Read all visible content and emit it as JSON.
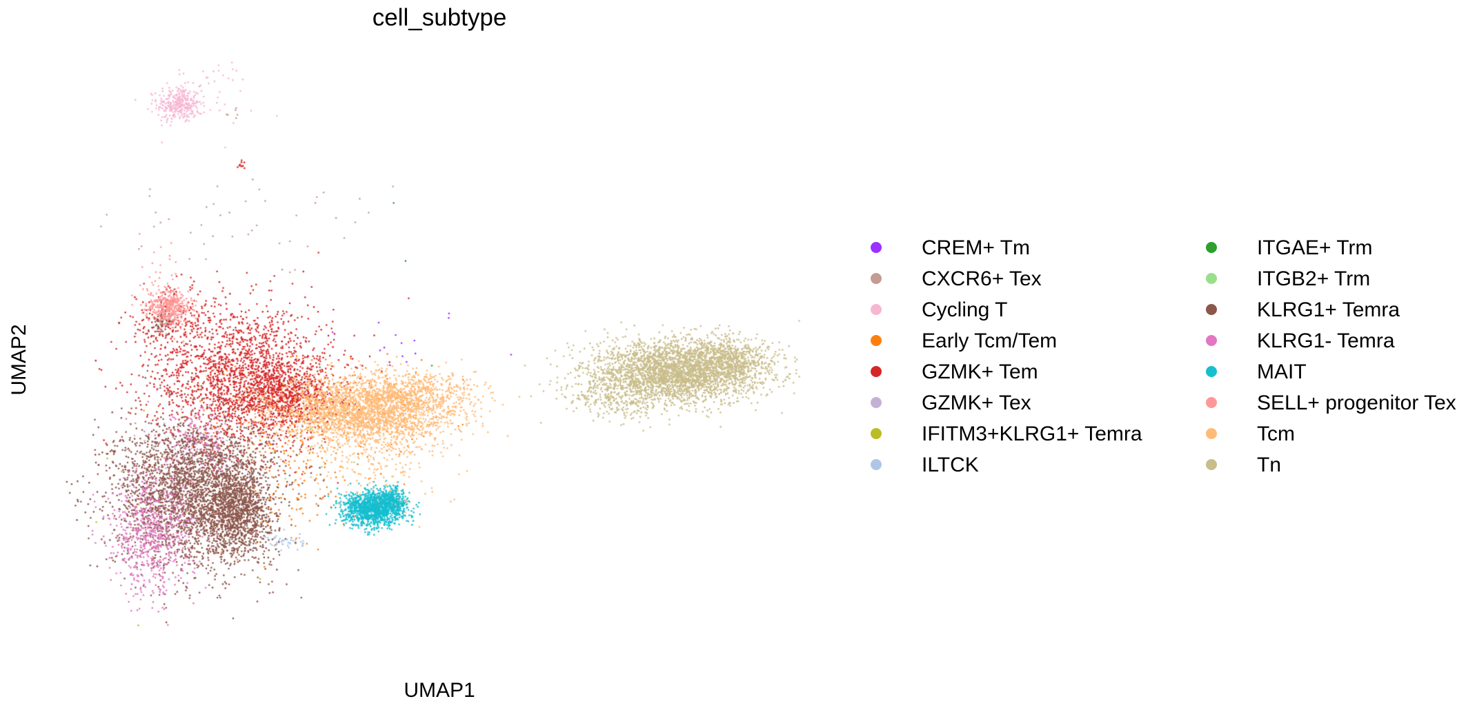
{
  "chart_data": {
    "type": "scatter",
    "title": "cell_subtype",
    "xlabel": "UMAP1",
    "ylabel": "UMAP2",
    "xlim": [
      -11.0,
      13.5
    ],
    "ylim": [
      -6.0,
      13.5
    ],
    "grid": false,
    "axes_visible": false,
    "legend_placement": "right, two columns",
    "series": [
      {
        "name": "CREM+ Tm",
        "color": "#9b30ff",
        "clusters": [
          {
            "cx": -0.3,
            "cy": 4.2,
            "sx": 1.4,
            "sy": 0.6,
            "n": 14
          }
        ]
      },
      {
        "name": "CXCR6+ Tex",
        "color": "#c49c94",
        "clusters": [
          {
            "cx": -4.5,
            "cy": 8.0,
            "sx": 2.8,
            "sy": 0.9,
            "n": 45
          },
          {
            "cx": -5.5,
            "cy": 11.8,
            "sx": 0.3,
            "sy": 0.15,
            "n": 6
          }
        ]
      },
      {
        "name": "Cycling T",
        "color": "#f7b6d2",
        "clusters": [
          {
            "cx": -7.3,
            "cy": 12.0,
            "sx": 0.35,
            "sy": 0.3,
            "n": 300
          },
          {
            "cx": -6.6,
            "cy": 12.3,
            "sx": 0.9,
            "sy": 0.6,
            "n": 50
          }
        ]
      },
      {
        "name": "Early Tcm/Tem",
        "color": "#ff7f0e",
        "clusters": [
          {
            "cx": -2.8,
            "cy": 1.6,
            "sx": 1.6,
            "sy": 1.0,
            "n": 300
          },
          {
            "cx": -3.8,
            "cy": -1.0,
            "sx": 1.0,
            "sy": 0.9,
            "n": 90
          }
        ]
      },
      {
        "name": "GZMK+ Tem",
        "color": "#d62728",
        "clusters": [
          {
            "cx": -5.2,
            "cy": 3.0,
            "sx": 1.5,
            "sy": 1.2,
            "n": 1900
          },
          {
            "cx": -7.5,
            "cy": 4.8,
            "sx": 0.8,
            "sy": 0.6,
            "n": 200
          },
          {
            "cx": -3.8,
            "cy": 2.4,
            "sx": 0.8,
            "sy": 0.5,
            "n": 600
          },
          {
            "cx": -5.2,
            "cy": 10.0,
            "sx": 0.08,
            "sy": 0.1,
            "n": 10
          }
        ]
      },
      {
        "name": "GZMK+ Tex",
        "color": "#c5b0d5",
        "clusters": [
          {
            "cx": -6.8,
            "cy": 0.5,
            "sx": 0.9,
            "sy": 0.6,
            "n": 100
          }
        ]
      },
      {
        "name": "IFITM3+KLRG1+ Temra",
        "color": "#bcbd22",
        "clusters": [
          {
            "cx": -6.5,
            "cy": -1.0,
            "sx": 1.5,
            "sy": 1.5,
            "n": 15
          }
        ]
      },
      {
        "name": "ILTCK",
        "color": "#aec7e8",
        "clusters": [
          {
            "cx": -3.8,
            "cy": -2.4,
            "sx": 0.3,
            "sy": 0.15,
            "n": 45
          }
        ]
      },
      {
        "name": "ITGAE+ Trm",
        "color": "#2ca02c",
        "clusters": [
          {
            "cx": -0.5,
            "cy": 7.0,
            "sx": 1.5,
            "sy": 2.0,
            "n": 4
          }
        ]
      },
      {
        "name": "ITGB2+ Trm",
        "color": "#98df8a",
        "clusters": [
          {
            "cx": -3.5,
            "cy": 0.5,
            "sx": 1.0,
            "sy": 0.8,
            "n": 10
          }
        ]
      },
      {
        "name": "KLRG1+ Temra",
        "color": "#8c564b",
        "clusters": [
          {
            "cx": -6.8,
            "cy": -0.8,
            "sx": 1.3,
            "sy": 1.2,
            "n": 3000
          },
          {
            "cx": -5.3,
            "cy": -1.3,
            "sx": 0.5,
            "sy": 0.8,
            "n": 900
          },
          {
            "cx": -7.8,
            "cy": 4.8,
            "sx": 0.15,
            "sy": 0.15,
            "n": 60
          }
        ]
      },
      {
        "name": "KLRG1- Temra",
        "color": "#e377c2",
        "clusters": [
          {
            "cx": -8.2,
            "cy": -2.2,
            "sx": 0.7,
            "sy": 1.0,
            "n": 650
          },
          {
            "cx": -6.5,
            "cy": 1.0,
            "sx": 0.7,
            "sy": 0.5,
            "n": 120
          }
        ]
      },
      {
        "name": "MAIT",
        "color": "#17becf",
        "clusters": [
          {
            "cx": -0.9,
            "cy": -1.3,
            "sx": 0.5,
            "sy": 0.28,
            "n": 1300
          },
          {
            "cx": -0.3,
            "cy": -1.0,
            "sx": 0.2,
            "sy": 0.2,
            "n": 250
          }
        ]
      },
      {
        "name": "SELL+ progenitor Tex",
        "color": "#ff9896",
        "clusters": [
          {
            "cx": -7.6,
            "cy": 5.3,
            "sx": 0.35,
            "sy": 0.3,
            "n": 380
          },
          {
            "cx": -7.8,
            "cy": 6.3,
            "sx": 0.4,
            "sy": 0.5,
            "n": 40
          }
        ]
      },
      {
        "name": "Tcm",
        "color": "#ffbb78",
        "clusters": [
          {
            "cx": -1.2,
            "cy": 1.9,
            "sx": 1.5,
            "sy": 0.55,
            "n": 2400
          },
          {
            "cx": 0.5,
            "cy": 2.5,
            "sx": 1.0,
            "sy": 0.4,
            "n": 400
          },
          {
            "cx": -1.0,
            "cy": 0.5,
            "sx": 1.2,
            "sy": 0.8,
            "n": 250
          }
        ]
      },
      {
        "name": "Tn",
        "color": "#c9bd8b",
        "clusters": [
          {
            "cx": 9.0,
            "cy": 3.2,
            "sx": 1.4,
            "sy": 0.5,
            "n": 2800
          },
          {
            "cx": 10.5,
            "cy": 3.6,
            "sx": 0.8,
            "sy": 0.4,
            "n": 600
          },
          {
            "cx": 7.0,
            "cy": 2.4,
            "sx": 0.9,
            "sy": 0.4,
            "n": 300
          }
        ]
      }
    ]
  }
}
